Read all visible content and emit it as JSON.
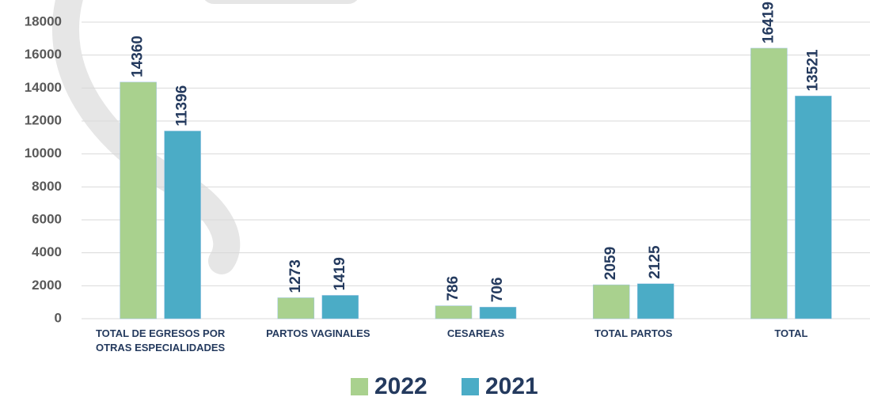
{
  "chart_data": {
    "type": "bar",
    "categories": [
      "TOTAL DE EGRESOS POR OTRAS ESPECIALIDADES",
      "PARTOS VAGINALES",
      "CESAREAS",
      "TOTAL PARTOS",
      "TOTAL"
    ],
    "series": [
      {
        "name": "2022",
        "color": "#a9d18e",
        "values": [
          14360,
          1273,
          786,
          2059,
          16419
        ]
      },
      {
        "name": "2021",
        "color": "#4bacc6",
        "values": [
          11396,
          1419,
          706,
          2125,
          13521
        ]
      }
    ],
    "ylim": [
      0,
      18000
    ],
    "yticks": [
      0,
      2000,
      4000,
      6000,
      8000,
      10000,
      12000,
      14000,
      16000,
      18000
    ],
    "grid": true,
    "legend": "bottom"
  }
}
